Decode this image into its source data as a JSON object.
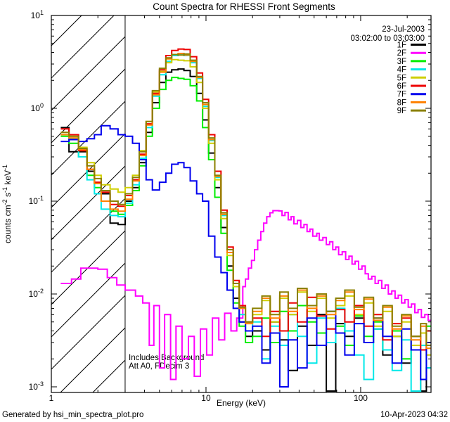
{
  "title": "Count Spectra for RHESSI Front Segments",
  "header": {
    "date": "23-Jul-2003",
    "time_range": "03:02:00 to 03:03:00"
  },
  "annotations": {
    "line1": "Includes Background",
    "line2": "Att A0, FDecim 3"
  },
  "footer": {
    "left": "Generated by hsi_min_spectra_plot.pro",
    "right": "10-Apr-2023 04:32"
  },
  "axes": {
    "x_label": "Energy (keV)",
    "x_tick_labels": [
      {
        "x": 1,
        "label": "1"
      },
      {
        "x": 10,
        "label": "10"
      },
      {
        "x": 100,
        "label": "100"
      }
    ],
    "y_tick_labels": [
      {
        "y": 10,
        "base": "10",
        "exp": "1"
      },
      {
        "y": 1,
        "base": "10",
        "exp": "0"
      },
      {
        "y": 0.1,
        "base": "10",
        "exp": "-1"
      },
      {
        "y": 0.01,
        "base": "10",
        "exp": "-2"
      },
      {
        "y": 0.001,
        "base": "10",
        "exp": "-3"
      }
    ],
    "y_label_segments": [
      {
        "t": "counts cm"
      },
      {
        "sup": "-2"
      },
      {
        "t": " s"
      },
      {
        "sup": "-1"
      },
      {
        "t": " keV"
      },
      {
        "sup": "-1"
      }
    ]
  },
  "chart_data": {
    "type": "line",
    "subtype": "step-histogram",
    "x_scale": "log",
    "y_scale": "log",
    "x_range": [
      1,
      285
    ],
    "y_range": [
      0.00087,
      10
    ],
    "grid": false,
    "legend_position": "top-right-inside",
    "hatch_region": {
      "x_min": 1,
      "x_max": 3.0,
      "style": "diagonal-hatch"
    },
    "x_edges": [
      1.15,
      1.3,
      1.5,
      1.7,
      1.9,
      2.1,
      2.4,
      2.7,
      3.0,
      3.35,
      3.7,
      4.1,
      4.5,
      5.0,
      5.5,
      6.0,
      6.6,
      7.2,
      7.9,
      8.7,
      9.5,
      10.4,
      11.4,
      12.5,
      13.7,
      15.0,
      16.4,
      18.0,
      20,
      23,
      26,
      30,
      34,
      39,
      45,
      52,
      60,
      69,
      79,
      91,
      105,
      121,
      139,
      160,
      184,
      212,
      244,
      266,
      290
    ],
    "series": [
      {
        "name": "1F",
        "color": "#000000",
        "y": [
          0.62,
          0.34,
          0.34,
          0.21,
          0.155,
          0.12,
          0.058,
          0.056,
          0.1,
          0.14,
          0.26,
          0.55,
          1.15,
          1.9,
          2.45,
          2.6,
          2.65,
          2.55,
          2.2,
          1.45,
          0.75,
          0.33,
          0.14,
          0.052,
          0.02,
          0.009,
          0.005,
          0.0035,
          0.004,
          0.0025,
          0.005,
          0.0032,
          0.0015,
          0.0045,
          0.0028,
          0.006,
          0.0009,
          0.0048,
          0.0035,
          0.0055,
          0.003,
          0.0042,
          0.0022,
          0.0035,
          0.0018,
          0.0028,
          0.0009,
          0.0016,
          0.0012
        ]
      },
      {
        "name": "2F",
        "color": "#ff00ff",
        "points": [
          [
            1.15,
            0.013
          ],
          [
            1.35,
            0.0145
          ],
          [
            1.55,
            0.019
          ],
          [
            2.0,
            0.0185
          ],
          [
            2.3,
            0.015
          ],
          [
            2.65,
            0.0125
          ],
          [
            3.0,
            0.011
          ],
          [
            3.5,
            0.0095
          ],
          [
            3.9,
            0.008
          ],
          [
            4.3,
            0.0028
          ],
          [
            4.6,
            0.0075
          ],
          [
            5.0,
            0.0016
          ],
          [
            5.4,
            0.006
          ],
          [
            5.9,
            0.0012
          ],
          [
            6.4,
            0.0045
          ],
          [
            7.0,
            0.002
          ],
          [
            7.7,
            0.0035
          ],
          [
            8.4,
            0.0013
          ],
          [
            9.2,
            0.0042
          ],
          [
            10.1,
            0.0022
          ],
          [
            11.0,
            0.0055
          ],
          [
            12.1,
            0.0032
          ],
          [
            13.2,
            0.0062
          ],
          [
            14.5,
            0.004
          ],
          [
            15.8,
            0.0055
          ],
          [
            17.3,
            0.012
          ],
          [
            18.0,
            0.0145
          ],
          [
            18.8,
            0.019
          ],
          [
            19.7,
            0.023
          ],
          [
            20.6,
            0.03
          ],
          [
            21.6,
            0.038
          ],
          [
            22.6,
            0.047
          ],
          [
            23.6,
            0.058
          ],
          [
            24.7,
            0.068
          ],
          [
            25.9,
            0.075
          ],
          [
            27.1,
            0.079
          ],
          [
            29.6,
            0.0785
          ],
          [
            31.0,
            0.07
          ],
          [
            32.4,
            0.0755
          ],
          [
            34.0,
            0.063
          ],
          [
            35.5,
            0.068
          ],
          [
            37.0,
            0.057
          ],
          [
            39.0,
            0.062
          ],
          [
            41.0,
            0.052
          ],
          [
            43.0,
            0.056
          ],
          [
            45.0,
            0.047
          ],
          [
            47.0,
            0.05
          ],
          [
            49.0,
            0.042
          ],
          [
            52.0,
            0.045
          ],
          [
            54.0,
            0.038
          ],
          [
            57.0,
            0.0405
          ],
          [
            60.0,
            0.034
          ],
          [
            63.0,
            0.0365
          ],
          [
            66.0,
            0.03
          ],
          [
            69.0,
            0.032
          ],
          [
            72.0,
            0.0265
          ],
          [
            76.0,
            0.0285
          ],
          [
            80.0,
            0.0235
          ],
          [
            84.0,
            0.0255
          ],
          [
            88.0,
            0.021
          ],
          [
            92.0,
            0.0225
          ],
          [
            97.0,
            0.0185
          ],
          [
            102,
            0.02
          ],
          [
            107,
            0.0165
          ],
          [
            112,
            0.0145
          ],
          [
            118,
            0.0155
          ],
          [
            124,
            0.013
          ],
          [
            130,
            0.014
          ],
          [
            137,
            0.0115
          ],
          [
            144,
            0.0125
          ],
          [
            151,
            0.01
          ],
          [
            159,
            0.0108
          ],
          [
            167,
            0.009
          ],
          [
            175,
            0.0097
          ],
          [
            184,
            0.008
          ],
          [
            193,
            0.0087
          ],
          [
            203,
            0.0072
          ],
          [
            213,
            0.0078
          ],
          [
            224,
            0.0063
          ],
          [
            235,
            0.0068
          ],
          [
            247,
            0.0056
          ],
          [
            260,
            0.006
          ],
          [
            273,
            0.0052
          ],
          [
            290,
            0.005
          ]
        ]
      },
      {
        "name": "3F",
        "color": "#00ee00",
        "y": [
          0.5,
          0.42,
          0.3,
          0.19,
          0.14,
          0.1,
          0.078,
          0.072,
          0.09,
          0.13,
          0.24,
          0.5,
          1.0,
          1.6,
          2.0,
          2.15,
          2.1,
          2.05,
          1.75,
          1.2,
          0.62,
          0.28,
          0.11,
          0.045,
          0.018,
          0.008,
          0.0045,
          0.003,
          0.0035,
          0.0055,
          0.003,
          0.0065,
          0.004,
          0.0075,
          0.005,
          0.0038,
          0.0065,
          0.0045,
          0.0028,
          0.0058,
          0.0035,
          0.005,
          0.0025,
          0.004,
          0.002,
          0.0035,
          0.0028,
          0.0045,
          0.0018
        ]
      },
      {
        "name": "4F",
        "color": "#00e8e8",
        "y": [
          0.52,
          0.47,
          0.3,
          0.17,
          0.12,
          0.082,
          0.07,
          0.068,
          0.095,
          0.15,
          0.29,
          0.62,
          1.35,
          2.3,
          3.2,
          3.7,
          3.85,
          3.7,
          3.1,
          2.1,
          1.05,
          0.45,
          0.18,
          0.07,
          0.028,
          0.012,
          0.006,
          0.004,
          0.005,
          0.002,
          0.0045,
          0.0028,
          0.006,
          0.0035,
          0.0018,
          0.0055,
          0.003,
          0.007,
          0.004,
          0.0022,
          0.0012,
          0.0042,
          0.0025,
          0.0015,
          0.0032,
          0.0009,
          0.0028,
          0.0016,
          0.0022
        ]
      },
      {
        "name": "5F",
        "color": "#cfcf00",
        "y": [
          0.55,
          0.5,
          0.38,
          0.26,
          0.19,
          0.15,
          0.135,
          0.125,
          0.14,
          0.19,
          0.35,
          0.72,
          1.5,
          2.5,
          3.1,
          3.35,
          3.3,
          3.25,
          2.8,
          1.9,
          1.0,
          0.42,
          0.17,
          0.065,
          0.026,
          0.012,
          0.007,
          0.005,
          0.006,
          0.0085,
          0.005,
          0.009,
          0.006,
          0.0105,
          0.0065,
          0.009,
          0.0055,
          0.0075,
          0.0095,
          0.006,
          0.008,
          0.0045,
          0.0065,
          0.0035,
          0.005,
          0.0028,
          0.0038,
          0.0022,
          0.003
        ]
      },
      {
        "name": "6F",
        "color": "#ee0000",
        "y": [
          0.6,
          0.52,
          0.35,
          0.22,
          0.16,
          0.125,
          0.092,
          0.088,
          0.115,
          0.17,
          0.32,
          0.68,
          1.45,
          2.6,
          3.7,
          4.2,
          4.35,
          4.3,
          3.6,
          2.4,
          1.25,
          0.52,
          0.21,
          0.08,
          0.032,
          0.014,
          0.0075,
          0.005,
          0.0055,
          0.0035,
          0.0065,
          0.004,
          0.008,
          0.005,
          0.0092,
          0.0058,
          0.0042,
          0.0068,
          0.005,
          0.0075,
          0.0045,
          0.006,
          0.0032,
          0.0048,
          0.0055,
          0.0035,
          0.0025,
          0.004,
          0.002
        ]
      },
      {
        "name": "7F",
        "color": "#0000ee",
        "y": [
          0.44,
          0.46,
          0.44,
          0.47,
          0.52,
          0.65,
          0.6,
          0.52,
          0.5,
          0.42,
          0.28,
          0.17,
          0.132,
          0.16,
          0.2,
          0.25,
          0.26,
          0.23,
          0.165,
          0.12,
          0.1,
          0.042,
          0.025,
          0.017,
          0.011,
          0.007,
          0.005,
          0.004,
          0.0045,
          0.0018,
          0.0038,
          0.001,
          0.0032,
          0.0016,
          0.0055,
          0.0028,
          0.0065,
          0.0038,
          0.0022,
          0.0048,
          0.003,
          0.0055,
          0.0035,
          0.0018,
          0.0042,
          0.0025,
          0.0012,
          0.003,
          0.0018
        ]
      },
      {
        "name": "8F",
        "color": "#ff8000",
        "y": [
          0.52,
          0.48,
          0.36,
          0.22,
          0.155,
          0.1,
          0.082,
          0.078,
          0.105,
          0.165,
          0.31,
          0.66,
          1.4,
          2.45,
          3.4,
          3.8,
          3.9,
          3.75,
          3.2,
          2.15,
          1.1,
          0.46,
          0.185,
          0.072,
          0.028,
          0.013,
          0.007,
          0.0048,
          0.0065,
          0.009,
          0.0055,
          0.0095,
          0.0065,
          0.011,
          0.007,
          0.0095,
          0.006,
          0.0085,
          0.0105,
          0.0068,
          0.0088,
          0.0052,
          0.0072,
          0.0042,
          0.0058,
          0.0032,
          0.0045,
          0.0026,
          0.0035
        ]
      },
      {
        "name": "9F",
        "color": "#8b8000",
        "y": [
          0.55,
          0.5,
          0.37,
          0.24,
          0.175,
          0.13,
          0.1,
          0.092,
          0.12,
          0.18,
          0.34,
          0.72,
          1.55,
          2.7,
          3.5,
          3.8,
          3.75,
          3.85,
          3.3,
          2.2,
          1.15,
          0.48,
          0.19,
          0.075,
          0.03,
          0.013,
          0.0072,
          0.005,
          0.007,
          0.0095,
          0.006,
          0.0105,
          0.007,
          0.0115,
          0.0075,
          0.01,
          0.0065,
          0.009,
          0.011,
          0.0072,
          0.0092,
          0.0055,
          0.0075,
          0.0045,
          0.006,
          0.0035,
          0.0048,
          0.0028,
          0.0038
        ]
      }
    ]
  }
}
